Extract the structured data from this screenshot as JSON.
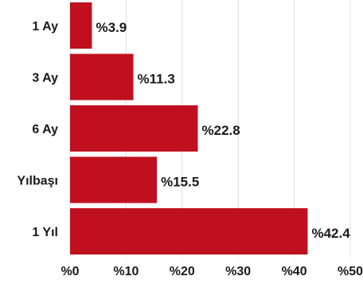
{
  "chart_data": {
    "type": "bar",
    "orientation": "horizontal",
    "categories": [
      "1 Ay",
      "3 Ay",
      "6 Ay",
      "Yılbaşı",
      "1 Yıl"
    ],
    "values": [
      3.9,
      11.3,
      22.8,
      15.5,
      42.4
    ],
    "value_labels": [
      "%3.9",
      "%11.3",
      "%22.8",
      "%15.5",
      "%42.4"
    ],
    "x_ticks": [
      0,
      10,
      20,
      30,
      40,
      50
    ],
    "x_tick_labels": [
      "%0",
      "%10",
      "%20",
      "%30",
      "%40",
      "%50"
    ],
    "xlim": [
      0,
      50
    ],
    "grid": true,
    "legend": "none",
    "title": "",
    "xlabel": "",
    "ylabel": "",
    "bar_color": "#c0101f",
    "grid_color": "#dcdcdc",
    "text_color": "#1a1a1a"
  }
}
